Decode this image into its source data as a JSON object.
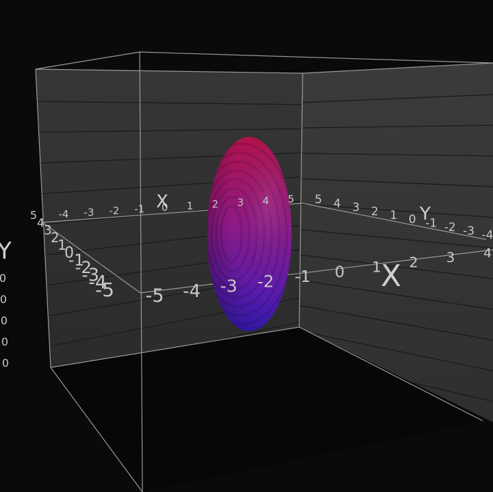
{
  "axes": {
    "x_title": "X",
    "y_title": "Y",
    "x_ticks_back": [
      "-4",
      "-3",
      "-2",
      "-1",
      "0",
      "1",
      "2",
      "3",
      "4",
      "5"
    ],
    "y_ticks_right": [
      "5",
      "4",
      "3",
      "2",
      "1",
      "0",
      "-1",
      "-2",
      "-3",
      "-4"
    ],
    "x_ticks_front": [
      "-5",
      "-4",
      "-3",
      "-2",
      "-1",
      "0",
      "1",
      "2",
      "3",
      "4"
    ],
    "y_ticks_left": [
      "5",
      "4",
      "3",
      "2",
      "1",
      "0",
      "-1",
      "-2",
      "-3",
      "-4",
      "-5"
    ],
    "z_ticks_partial": [
      "0",
      "0",
      "0",
      "0",
      "0"
    ]
  },
  "colors": {
    "background": "#0a0a0a",
    "wall": "#3a3a3a",
    "ellipsoid_top": "#b0124f",
    "ellipsoid_bottom": "#3c1cc0"
  }
}
